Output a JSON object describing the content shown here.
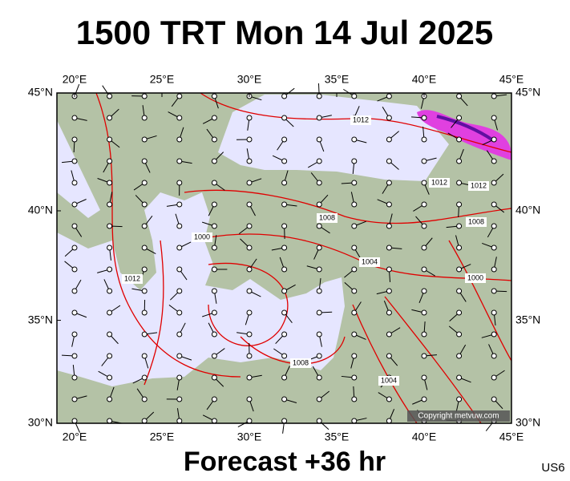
{
  "title": "1500 TRT Mon 14 Jul 2025",
  "footer": "Forecast +36 hr",
  "code": "US6",
  "copyright": "Copyright metvuw.com",
  "map": {
    "lon_ticks": [
      {
        "value": 20,
        "label": "20°E"
      },
      {
        "value": 25,
        "label": "25°E"
      },
      {
        "value": 30,
        "label": "30°E"
      },
      {
        "value": 35,
        "label": "35°E"
      },
      {
        "value": 40,
        "label": "40°E"
      },
      {
        "value": 45,
        "label": "45°E"
      }
    ],
    "lat_ticks": [
      {
        "value": 30,
        "label": "30°N"
      },
      {
        "value": 35,
        "label": "35°N"
      },
      {
        "value": 40,
        "label": "40°N"
      },
      {
        "value": 45,
        "label": "45°N"
      }
    ],
    "isobar_labels": [
      "1012",
      "1012",
      "1012",
      "1008",
      "1008",
      "1000",
      "1004",
      "1000",
      "1008",
      "1004",
      "1012"
    ]
  }
}
